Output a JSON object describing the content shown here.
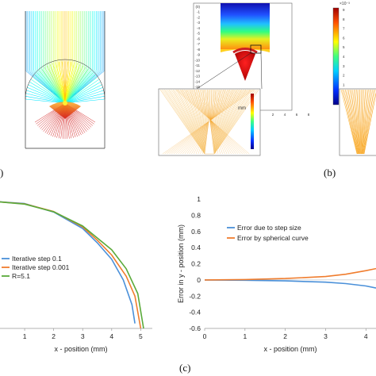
{
  "panel_labels": {
    "a_tail": ")",
    "b": "(b)",
    "c": "(c)"
  },
  "panel_b": {
    "left_ticks": [
      "(0)",
      "-1",
      "-2",
      "-3",
      "-4",
      "-5",
      "-6",
      "-7",
      "-8",
      "-9",
      "-10",
      "-11",
      "-12",
      "-13",
      "-14",
      "-15",
      "-16",
      "-17",
      "-18",
      "-19"
    ],
    "bottom_ticks": [
      "2",
      "4",
      "6",
      "8"
    ],
    "unit": "mm",
    "colorbar_ticks": [
      "9",
      "8",
      "7",
      "6",
      "5",
      "4",
      "3",
      "2",
      "1",
      "0",
      "-1"
    ],
    "colorbar_exponent": "×10⁻³"
  },
  "chart_data": [
    {
      "type": "line",
      "xlabel": "x - position (mm)",
      "xticks": [
        "1",
        "2",
        "3",
        "4",
        "5"
      ],
      "xlim": [
        0.15,
        5.4
      ],
      "ylim": [
        0,
        5.2
      ],
      "series": [
        {
          "name": "Iterative step 0.1",
          "color": "#4a90d9",
          "x": [
            0,
            1,
            2,
            3,
            3.5,
            4,
            4.4,
            4.7,
            4.8
          ],
          "y": [
            5.1,
            5.02,
            4.68,
            4.02,
            3.45,
            2.78,
            1.95,
            0.95,
            0.2
          ]
        },
        {
          "name": "Iterative step 0.001",
          "color": "#f07d2e",
          "x": [
            0,
            1,
            2,
            3,
            3.5,
            4,
            4.5,
            4.8,
            5.0
          ],
          "y": [
            5.1,
            5.01,
            4.7,
            4.08,
            3.55,
            2.95,
            2.1,
            1.3,
            0.0
          ]
        },
        {
          "name": "R=5.1",
          "color": "#5aaa3a",
          "x": [
            0,
            1,
            2,
            3,
            3.5,
            4,
            4.5,
            4.9,
            5.1
          ],
          "y": [
            5.1,
            5.0,
            4.69,
            4.12,
            3.64,
            3.16,
            2.4,
            1.4,
            0.0
          ]
        }
      ]
    },
    {
      "type": "line",
      "xlabel": "x - position (mm)",
      "ylabel": "Error in y - position (mm)",
      "xticks": [
        "0",
        "1",
        "2",
        "3",
        "4"
      ],
      "yticks": [
        "1",
        "0.8",
        "0.6",
        "0.4",
        "0.2",
        "0",
        "-0.2",
        "-0.4",
        "-0.6"
      ],
      "xlim": [
        0,
        4.25
      ],
      "ylim": [
        -0.6,
        1.0
      ],
      "series": [
        {
          "name": "Error due to step size",
          "color": "#4a90d9",
          "x": [
            0,
            1,
            2,
            3,
            3.5,
            4,
            4.25
          ],
          "y": [
            0,
            -0.004,
            -0.012,
            -0.028,
            -0.045,
            -0.075,
            -0.1
          ]
        },
        {
          "name": "Error by spherical curve",
          "color": "#f07d2e",
          "x": [
            0,
            1,
            2,
            3,
            3.5,
            4,
            4.25
          ],
          "y": [
            0,
            0.005,
            0.017,
            0.042,
            0.07,
            0.115,
            0.14
          ]
        }
      ]
    }
  ]
}
